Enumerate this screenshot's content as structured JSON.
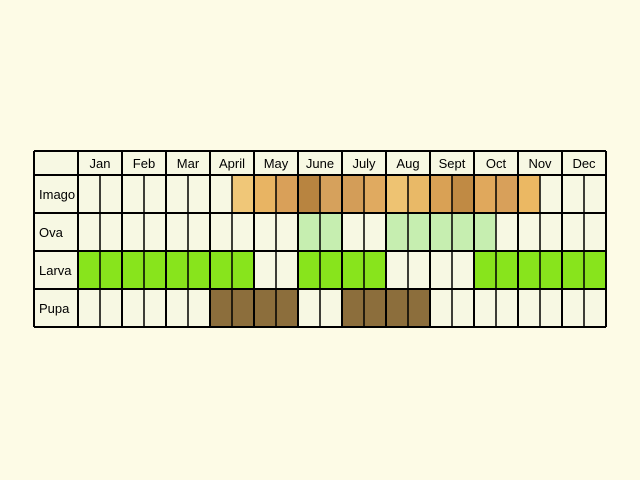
{
  "months": [
    "Jan",
    "Feb",
    "Mar",
    "April",
    "May",
    "June",
    "July",
    "Aug",
    "Sept",
    "Oct",
    "Nov",
    "Dec"
  ],
  "stages": [
    {
      "name": "Imago",
      "colors": [
        "#f7f8e3",
        "#f7f8e3",
        "#f7f8e3",
        "#f7f8e3",
        "#f7f8e3",
        "#f7f8e3",
        "#f7f8e3",
        "#f0c778",
        "#e8b463",
        "#d9a059",
        "#b88440",
        "#d6a15c",
        "#d39d58",
        "#e0aa60",
        "#eec372",
        "#e9b967",
        "#d9a155",
        "#c08a44",
        "#e0a85c",
        "#d8a05a",
        "#ebb863",
        "#f7f8e3",
        "#f7f8e3",
        "#f7f8e3"
      ],
      "colors_note": ""
    },
    {
      "name": "Ova",
      "colors": [
        "#f7f8e3",
        "#f7f8e3",
        "#f7f8e3",
        "#f7f8e3",
        "#f7f8e3",
        "#f7f8e3",
        "#f7f8e3",
        "#f7f8e3",
        "#f7f8e3",
        "#f7f8e3",
        "#c6eeb0",
        "#c6eeb0",
        "#f7f8e3",
        "#f7f8e3",
        "#c6eeb0",
        "#c6eeb0",
        "#c6eeb0",
        "#c6eeb0",
        "#c6eeb0",
        "#f7f8e3",
        "#f7f8e3",
        "#f7f8e3",
        "#f7f8e3",
        "#f7f8e3"
      ],
      "colors_note": ""
    },
    {
      "name": "Larva",
      "colors": [
        "#88e41c",
        "#88e41c",
        "#88e41c",
        "#88e41c",
        "#88e41c",
        "#88e41c",
        "#88e41c",
        "#88e41c",
        "#f7f8e3",
        "#f7f8e3",
        "#88e41c",
        "#88e41c",
        "#88e41c",
        "#88e41c",
        "#f7f8e3",
        "#f7f8e3",
        "#f7f8e3",
        "#f7f8e3",
        "#88e41c",
        "#88e41c",
        "#88e41c",
        "#88e41c",
        "#88e41c",
        "#88e41c"
      ],
      "colors_note": ""
    },
    {
      "name": "Pupa",
      "colors": [
        "#f7f8e3",
        "#f7f8e3",
        "#f7f8e3",
        "#f7f8e3",
        "#f7f8e3",
        "#f7f8e3",
        "#8c6e3c",
        "#8c6e3c",
        "#8c6e3c",
        "#8c6e3c",
        "#f7f8e3",
        "#f7f8e3",
        "#8c6e3c",
        "#8c6e3c",
        "#8c6e3c",
        "#8c6e3c",
        "#f7f8e3",
        "#f7f8e3",
        "#f7f8e3",
        "#f7f8e3",
        "#f7f8e3",
        "#f7f8e3",
        "#f7f8e3",
        "#f7f8e3"
      ],
      "colors_note": ""
    }
  ],
  "colors": {
    "background": "#fdfbe6",
    "cell_empty": "#f7f8e3",
    "grid_line": "#000000"
  }
}
